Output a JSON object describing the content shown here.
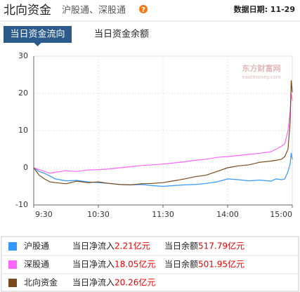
{
  "chart_data": {
    "type": "line",
    "title": "北向资金",
    "subtitle": "沪股通、深股通",
    "help_icon": "?",
    "date_label": "数据日期: 11-29",
    "tabs": [
      "当日资金流向",
      "当日资金余额"
    ],
    "active_tab": 0,
    "watermark": [
      "东方财富网",
      "eastmoney.com"
    ],
    "x": [
      0,
      5,
      10,
      15,
      20,
      30,
      40,
      50,
      60,
      70,
      80,
      90,
      100,
      110,
      120,
      130,
      140,
      150,
      160,
      170,
      180,
      190,
      200,
      210,
      220,
      225,
      230,
      233,
      236,
      238,
      239,
      240
    ],
    "xlim": [
      0,
      240
    ],
    "xticks": [
      {
        "value": 0,
        "label": "9:30"
      },
      {
        "value": 60,
        "label": "10:30"
      },
      {
        "value": 120,
        "label": "11:30"
      },
      {
        "value": 180,
        "label": "14:00"
      },
      {
        "value": 240,
        "label": "15:00"
      }
    ],
    "ylim": [
      -10,
      30
    ],
    "yticks": [
      -10,
      0,
      10,
      20,
      30
    ],
    "grid": true,
    "inflow_caption": "当日净流入",
    "balance_caption": "当日余额",
    "series": [
      {
        "name": "沪股通",
        "color": "#3399ff",
        "net_inflow_label": "2.21亿元",
        "balance_label": "517.79亿元",
        "values": [
          0,
          -1,
          -1.5,
          -2.2,
          -3,
          -3.5,
          -3.4,
          -3.8,
          -4,
          -4.2,
          -4.5,
          -4.6,
          -4.5,
          -4.8,
          -5,
          -4.8,
          -4.6,
          -4.5,
          -4.2,
          -3.8,
          -3,
          -3.2,
          -3.5,
          -3.3,
          -3.6,
          -3,
          -3.2,
          -3,
          -1,
          1,
          4,
          2.21
        ]
      },
      {
        "name": "深股通",
        "color": "#ff66ff",
        "net_inflow_label": "18.05亿元",
        "balance_label": "501.95亿元",
        "values": [
          0,
          -0.5,
          -1,
          -1.5,
          -1.2,
          -0.8,
          -1,
          -0.6,
          -0.5,
          -0.3,
          0,
          0.3,
          0.6,
          0.8,
          1,
          1.3,
          1.6,
          2,
          2.3,
          2.8,
          3,
          3.3,
          3.6,
          3.9,
          4.3,
          5,
          5.8,
          6.5,
          10,
          15,
          20,
          18.05
        ]
      },
      {
        "name": "北向资金",
        "color": "#7a4a1a",
        "net_inflow_label": "20.26亿元",
        "values": [
          0,
          -2,
          -3,
          -3.8,
          -4,
          -4.3,
          -3.6,
          -4,
          -3.8,
          -4.2,
          -4.5,
          -4.6,
          -4.3,
          -4.2,
          -4,
          -3.5,
          -3,
          -2.4,
          -2,
          -1,
          0,
          0.5,
          0.8,
          1.5,
          1.8,
          2,
          2.3,
          3,
          5,
          12,
          23.5,
          20.26
        ]
      }
    ]
  }
}
